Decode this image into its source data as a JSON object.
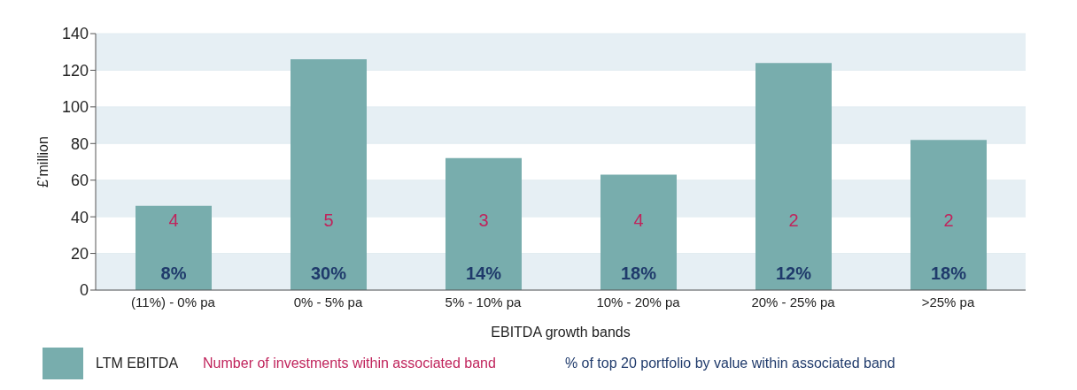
{
  "chart_data": {
    "type": "bar",
    "xlabel": "EBITDA growth bands",
    "ylabel": "£’million",
    "categories": [
      "(11%) - 0% pa",
      "0% - 5% pa",
      "5% - 10% pa",
      "10% - 20% pa",
      "20% - 25% pa",
      ">25% pa"
    ],
    "series": [
      {
        "name": "LTM EBITDA",
        "color": "#78adad",
        "values": [
          46,
          126,
          72,
          63,
          124,
          82
        ]
      }
    ],
    "ylim": [
      0,
      140
    ],
    "yticks": [
      0,
      20,
      40,
      60,
      80,
      100,
      120,
      140
    ],
    "grid": "y",
    "legend": "bottom left",
    "annotations": [
      "Number of investments within associated band",
      "% of top 20 portfolio by value within associated band",
      "4",
      "5",
      "3",
      "4",
      "2",
      "2",
      "8%",
      "30%",
      "14%",
      "18%",
      "12%",
      "18%"
    ]
  }
}
